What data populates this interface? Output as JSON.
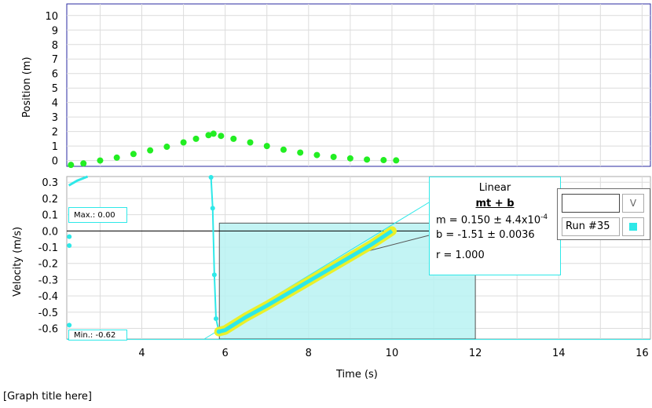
{
  "graph_title": "[Graph title here]",
  "position_axis": {
    "label": "Position (m)",
    "ticks": [
      "0",
      "1",
      "2",
      "3",
      "4",
      "5",
      "6",
      "7",
      "8",
      "9",
      "10"
    ]
  },
  "velocity_axis": {
    "label": "Velocity (m/s)",
    "ticks": [
      "0.3",
      "0.2",
      "0.1",
      "0.0",
      "-0.1",
      "-0.2",
      "-0.3",
      "-0.4",
      "-0.5",
      "-0.6"
    ]
  },
  "time_axis": {
    "label": "Time (s)",
    "ticks": [
      "4",
      "6",
      "8",
      "10",
      "12",
      "14",
      "16"
    ]
  },
  "stats": {
    "max": "Max.: 0.00",
    "min": "Min.: -0.62"
  },
  "fit": {
    "title": "Linear",
    "equation": "mt + b",
    "m_text": "m = 0.150 ± 4.4x10",
    "m_exp": "-4",
    "b_text": "b  = -1.51  ± 0.0036",
    "r_text": "r = 1.000"
  },
  "legend": {
    "unit_button": "V",
    "run_label": "Run #35",
    "swatch_color": "#2ee8e8"
  },
  "colors": {
    "position_series": "#22ee22",
    "velocity_series": "#2ee8e8",
    "fit_highlight": "#eaf02a",
    "region_fill": "#b8f2f2"
  },
  "chart_data": [
    {
      "type": "scatter",
      "title": "",
      "xlabel": "Time (s)",
      "ylabel": "Position (m)",
      "xlim": [
        2.2,
        16.2
      ],
      "ylim": [
        -0.4,
        10.8
      ],
      "grid": true,
      "series": [
        {
          "values": [
            [
              2.3,
              -0.3
            ],
            [
              2.6,
              -0.2
            ],
            [
              3.0,
              0.0
            ],
            [
              3.4,
              0.2
            ],
            [
              3.8,
              0.45
            ],
            [
              4.2,
              0.7
            ],
            [
              4.6,
              0.95
            ],
            [
              5.0,
              1.25
            ],
            [
              5.3,
              1.5
            ],
            [
              5.6,
              1.75
            ],
            [
              5.72,
              1.85
            ],
            [
              5.9,
              1.7
            ],
            [
              6.2,
              1.5
            ],
            [
              6.6,
              1.25
            ],
            [
              7.0,
              1.0
            ],
            [
              7.4,
              0.75
            ],
            [
              7.8,
              0.55
            ],
            [
              8.2,
              0.38
            ],
            [
              8.6,
              0.25
            ],
            [
              9.0,
              0.15
            ],
            [
              9.4,
              0.07
            ],
            [
              9.8,
              0.03
            ],
            [
              10.1,
              0.01
            ]
          ]
        }
      ]
    },
    {
      "type": "line",
      "title": "",
      "xlabel": "Time (s)",
      "ylabel": "Velocity (m/s)",
      "xlim": [
        2.2,
        16.2
      ],
      "ylim": [
        -0.665,
        0.335
      ],
      "grid": true,
      "stats": {
        "max": 0.0,
        "min": -0.62
      },
      "selected_region": {
        "x": [
          5.86,
          12.0
        ],
        "y": [
          -0.665,
          0.0
        ]
      },
      "series": [
        {
          "values": [
            [
              2.25,
              0.28
            ],
            [
              2.45,
              0.31
            ],
            [
              2.7,
              0.335
            ],
            [
              5.66,
              0.33
            ],
            [
              5.7,
              0.14
            ],
            [
              5.74,
              -0.27
            ],
            [
              5.78,
              -0.54
            ],
            [
              5.85,
              -0.62
            ],
            [
              6.0,
              -0.61
            ],
            [
              6.5,
              -0.53
            ],
            [
              7.0,
              -0.46
            ],
            [
              7.5,
              -0.385
            ],
            [
              8.0,
              -0.31
            ],
            [
              8.5,
              -0.235
            ],
            [
              9.0,
              -0.16
            ],
            [
              9.5,
              -0.085
            ],
            [
              10.0,
              0.0
            ]
          ]
        }
      ],
      "fit_line": {
        "x": [
          5.86,
          10.0
        ],
        "y": [
          -0.62,
          0.0
        ]
      }
    }
  ]
}
